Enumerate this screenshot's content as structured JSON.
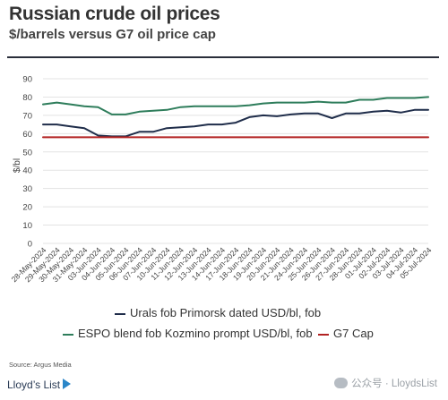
{
  "header": {
    "title": "Russian crude oil prices",
    "subtitle": "$/barrels versus G7 oil price cap"
  },
  "chart_data": {
    "type": "line",
    "ylabel": "$/bl",
    "ylim": [
      0,
      90
    ],
    "yticks": [
      0,
      10,
      20,
      30,
      40,
      50,
      60,
      70,
      80,
      90
    ],
    "grid": "horizontal",
    "legend_placement": "bottom",
    "categories": [
      "28-May-2024",
      "29-May-2024",
      "30-May-2024",
      "31-May-2024",
      "03-Jun-2024",
      "04-Jun-2024",
      "05-Jun-2024",
      "06-Jun-2024",
      "07-Jun-2024",
      "10-Jun-2024",
      "11-Jun-2024",
      "12-Jun-2024",
      "13-Jun-2024",
      "14-Jun-2024",
      "17-Jun-2024",
      "18-Jun-2024",
      "19-Jun-2024",
      "20-Jun-2024",
      "21-Jun-2024",
      "24-Jun-2024",
      "25-Jun-2024",
      "26-Jun-2024",
      "27-Jun-2024",
      "28-Jun-2024",
      "01-Jul-2024",
      "02-Jul-2024",
      "03-Jul-2024",
      "04-Jul-2024",
      "05-Jul-2024"
    ],
    "series": [
      {
        "name": "Urals fob Primorsk dated USD/bl, fob",
        "color": "#1f2d4a",
        "values": [
          65,
          65,
          64,
          63,
          59,
          58.5,
          58.5,
          61,
          61,
          63,
          63.5,
          64,
          65,
          65,
          66,
          69,
          70,
          69.5,
          70.5,
          71,
          71,
          68.5,
          71,
          71,
          72,
          72.5,
          71.5,
          73,
          73
        ]
      },
      {
        "name": "ESPO blend fob Kozmino prompt USD/bl, fob",
        "color": "#2e7d5b",
        "values": [
          76,
          77,
          76,
          75,
          74.5,
          70.5,
          70.5,
          72,
          72.5,
          73,
          74.5,
          75,
          75,
          75,
          75,
          75.5,
          76.5,
          77,
          77,
          77,
          77.5,
          77,
          77,
          78.5,
          78.5,
          79.5,
          79.5,
          79.5,
          80
        ]
      },
      {
        "name": "G7 Cap",
        "color": "#b22222",
        "values": [
          58,
          58,
          58,
          58,
          58,
          58,
          58,
          58,
          58,
          58,
          58,
          58,
          58,
          58,
          58,
          58,
          58,
          58,
          58,
          58,
          58,
          58,
          58,
          58,
          58,
          58,
          58,
          58,
          58
        ]
      }
    ]
  },
  "footer": {
    "source": "Source: Argus Media",
    "logo": "Lloyd’s List",
    "watermark": "公众号 · LloydsList"
  }
}
